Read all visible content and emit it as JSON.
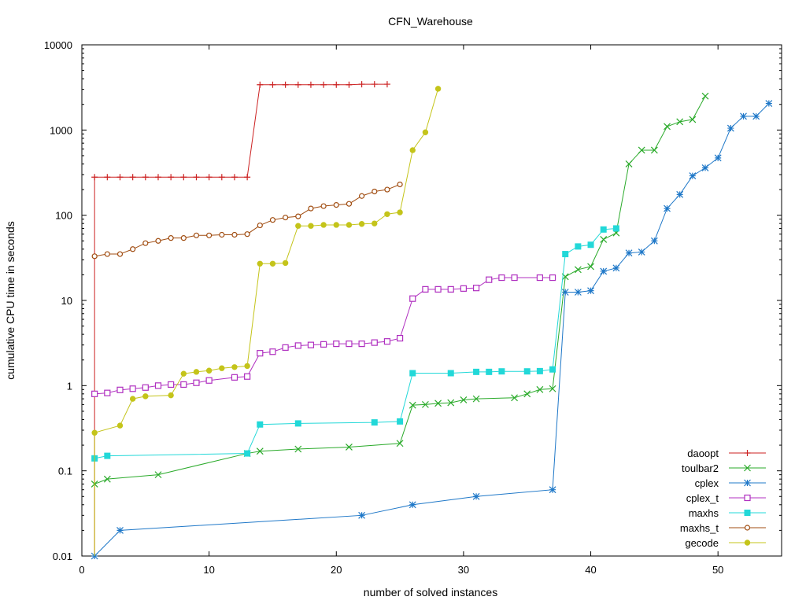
{
  "chart_data": {
    "type": "line",
    "title": "CFN_Warehouse",
    "xlabel": "number of solved instances",
    "ylabel": "cumulative CPU time in seconds",
    "xlim": [
      0,
      55
    ],
    "ylim": [
      0.01,
      10000
    ],
    "yscale": "log",
    "grid": false,
    "legend_position": "bottom-right",
    "x_ticks": [
      0,
      10,
      20,
      30,
      40,
      50
    ],
    "x_tick_labels": [
      "0",
      "10",
      "20",
      "30",
      "40",
      "50"
    ],
    "y_ticks": [
      0.01,
      0.1,
      1,
      10,
      100,
      1000,
      10000
    ],
    "y_tick_labels": [
      "0.01",
      "0.1",
      "1",
      "10",
      "100",
      "1000",
      "10000"
    ],
    "series": [
      {
        "name": "daoopt",
        "color": "#cc2222",
        "marker": "plus",
        "points": [
          [
            1,
            0.01
          ],
          [
            1,
            280
          ],
          [
            2,
            280
          ],
          [
            3,
            280
          ],
          [
            4,
            280
          ],
          [
            5,
            280
          ],
          [
            6,
            280
          ],
          [
            7,
            280
          ],
          [
            8,
            280
          ],
          [
            9,
            280
          ],
          [
            10,
            280
          ],
          [
            11,
            280
          ],
          [
            12,
            280
          ],
          [
            13,
            280
          ],
          [
            14,
            3400
          ],
          [
            15,
            3400
          ],
          [
            16,
            3400
          ],
          [
            17,
            3400
          ],
          [
            18,
            3400
          ],
          [
            19,
            3400
          ],
          [
            20,
            3400
          ],
          [
            21,
            3400
          ],
          [
            22,
            3450
          ],
          [
            23,
            3450
          ],
          [
            24,
            3450
          ]
        ]
      },
      {
        "name": "toulbar2",
        "color": "#2aaa2a",
        "marker": "x",
        "points": [
          [
            1,
            0.07
          ],
          [
            2,
            0.08
          ],
          [
            6,
            0.09
          ],
          [
            13,
            0.16
          ],
          [
            14,
            0.17
          ],
          [
            17,
            0.18
          ],
          [
            21,
            0.19
          ],
          [
            25,
            0.21
          ],
          [
            26,
            0.59
          ],
          [
            27,
            0.6
          ],
          [
            28,
            0.62
          ],
          [
            29,
            0.63
          ],
          [
            30,
            0.68
          ],
          [
            31,
            0.7
          ],
          [
            34,
            0.72
          ],
          [
            35,
            0.8
          ],
          [
            36,
            0.9
          ],
          [
            37,
            0.92
          ],
          [
            38,
            19
          ],
          [
            39,
            23
          ],
          [
            40,
            25
          ],
          [
            41,
            52
          ],
          [
            42,
            62
          ],
          [
            43,
            400
          ],
          [
            44,
            580
          ],
          [
            45,
            580
          ],
          [
            46,
            1100
          ],
          [
            47,
            1250
          ],
          [
            48,
            1330
          ],
          [
            49,
            2500
          ]
        ]
      },
      {
        "name": "cplex",
        "color": "#1f78c8",
        "marker": "star",
        "points": [
          [
            1,
            0.01
          ],
          [
            3,
            0.02
          ],
          [
            22,
            0.03
          ],
          [
            26,
            0.04
          ],
          [
            31,
            0.05
          ],
          [
            37,
            0.06
          ],
          [
            38,
            12.5
          ],
          [
            39,
            12.5
          ],
          [
            40,
            13
          ],
          [
            41,
            22
          ],
          [
            42,
            24
          ],
          [
            43,
            36
          ],
          [
            44,
            37
          ],
          [
            45,
            50
          ],
          [
            46,
            120
          ],
          [
            47,
            175
          ],
          [
            48,
            290
          ],
          [
            49,
            360
          ],
          [
            50,
            470
          ],
          [
            51,
            1050
          ],
          [
            52,
            1450
          ],
          [
            53,
            1450
          ],
          [
            54,
            2050
          ]
        ]
      },
      {
        "name": "cplex_t",
        "color": "#b030c0",
        "marker": "open-square",
        "points": [
          [
            1,
            0.8
          ],
          [
            2,
            0.82
          ],
          [
            3,
            0.89
          ],
          [
            4,
            0.92
          ],
          [
            5,
            0.95
          ],
          [
            6,
            1.0
          ],
          [
            7,
            1.03
          ],
          [
            8,
            1.03
          ],
          [
            9,
            1.08
          ],
          [
            10,
            1.15
          ],
          [
            12,
            1.25
          ],
          [
            13,
            1.28
          ],
          [
            14,
            2.4
          ],
          [
            15,
            2.5
          ],
          [
            16,
            2.8
          ],
          [
            17,
            2.95
          ],
          [
            18,
            3.0
          ],
          [
            19,
            3.05
          ],
          [
            20,
            3.1
          ],
          [
            21,
            3.1
          ],
          [
            22,
            3.1
          ],
          [
            23,
            3.2
          ],
          [
            24,
            3.3
          ],
          [
            25,
            3.6
          ],
          [
            26,
            10.5
          ],
          [
            27,
            13.5
          ],
          [
            28,
            13.5
          ],
          [
            29,
            13.5
          ],
          [
            30,
            13.8
          ],
          [
            31,
            14
          ],
          [
            32,
            17.5
          ],
          [
            33,
            18.5
          ],
          [
            34,
            18.5
          ],
          [
            36,
            18.5
          ],
          [
            37,
            18.5
          ]
        ]
      },
      {
        "name": "maxhs",
        "color": "#22d8d8",
        "marker": "filled-square",
        "points": [
          [
            1,
            0.14
          ],
          [
            2,
            0.15
          ],
          [
            13,
            0.16
          ],
          [
            14,
            0.35
          ],
          [
            17,
            0.36
          ],
          [
            23,
            0.37
          ],
          [
            25,
            0.38
          ],
          [
            26,
            1.4
          ],
          [
            29,
            1.4
          ],
          [
            31,
            1.45
          ],
          [
            32,
            1.45
          ],
          [
            33,
            1.47
          ],
          [
            35,
            1.47
          ],
          [
            36,
            1.48
          ],
          [
            37,
            1.55
          ],
          [
            38,
            35
          ],
          [
            39,
            43
          ],
          [
            40,
            45
          ],
          [
            41,
            68
          ],
          [
            42,
            70
          ]
        ]
      },
      {
        "name": "maxhs_t",
        "color": "#a04c10",
        "marker": "open-circle",
        "points": [
          [
            1,
            33
          ],
          [
            2,
            35
          ],
          [
            3,
            35
          ],
          [
            4,
            40
          ],
          [
            5,
            47
          ],
          [
            6,
            50
          ],
          [
            7,
            54
          ],
          [
            8,
            54
          ],
          [
            9,
            58
          ],
          [
            10,
            58
          ],
          [
            11,
            59
          ],
          [
            12,
            59
          ],
          [
            13,
            60
          ],
          [
            14,
            76
          ],
          [
            15,
            88
          ],
          [
            16,
            94
          ],
          [
            17,
            97
          ],
          [
            18,
            120
          ],
          [
            19,
            128
          ],
          [
            20,
            132
          ],
          [
            21,
            136
          ],
          [
            22,
            168
          ],
          [
            23,
            190
          ],
          [
            24,
            200
          ],
          [
            25,
            230
          ]
        ]
      },
      {
        "name": "gecode",
        "color": "#c4c41a",
        "marker": "filled-circle",
        "points": [
          [
            1,
            0.01
          ],
          [
            1,
            0.28
          ],
          [
            3,
            0.34
          ],
          [
            4,
            0.7
          ],
          [
            5,
            0.75
          ],
          [
            7,
            0.77
          ],
          [
            8,
            1.38
          ],
          [
            9,
            1.45
          ],
          [
            10,
            1.5
          ],
          [
            11,
            1.6
          ],
          [
            12,
            1.65
          ],
          [
            13,
            1.7
          ],
          [
            14,
            27
          ],
          [
            15,
            27
          ],
          [
            16,
            27.5
          ],
          [
            17,
            75
          ],
          [
            18,
            75
          ],
          [
            19,
            77
          ],
          [
            20,
            77
          ],
          [
            21,
            77
          ],
          [
            22,
            79
          ],
          [
            23,
            80
          ],
          [
            24,
            103
          ],
          [
            25,
            108
          ],
          [
            26,
            580
          ],
          [
            27,
            940
          ],
          [
            28,
            3050
          ]
        ]
      }
    ]
  }
}
